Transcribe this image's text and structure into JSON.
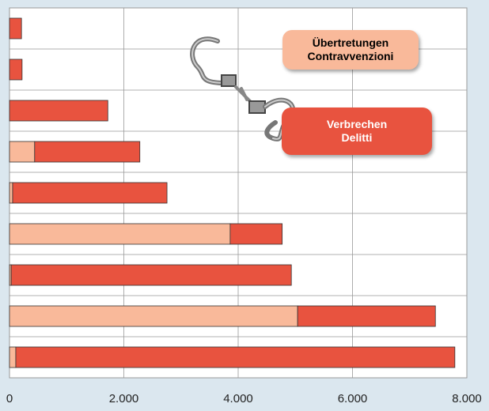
{
  "chart_data": {
    "type": "bar",
    "orientation": "horizontal",
    "stacked": true,
    "categories": [
      null,
      null,
      null,
      null,
      null,
      null,
      null,
      null,
      null
    ],
    "series": [
      {
        "name": "Übertretungen Contravvenzioni",
        "color": "#f9b99a",
        "values": [
          0,
          0,
          0,
          440,
          55,
          3860,
          30,
          5040,
          110
        ]
      },
      {
        "name": "Verbrechen Delitti",
        "color": "#e8533f",
        "values": [
          210,
          220,
          1720,
          1840,
          2700,
          910,
          4900,
          2410,
          7680
        ]
      }
    ],
    "xlim": [
      0,
      8000
    ],
    "xticks": [
      0,
      {
        "value": 2000,
        "label": "2.000"
      },
      {
        "value": 4000,
        "label": "4.000"
      },
      {
        "value": 6000,
        "label": "6.000"
      },
      {
        "value": 8000,
        "label": "8.000"
      }
    ],
    "grid": true
  }
}
